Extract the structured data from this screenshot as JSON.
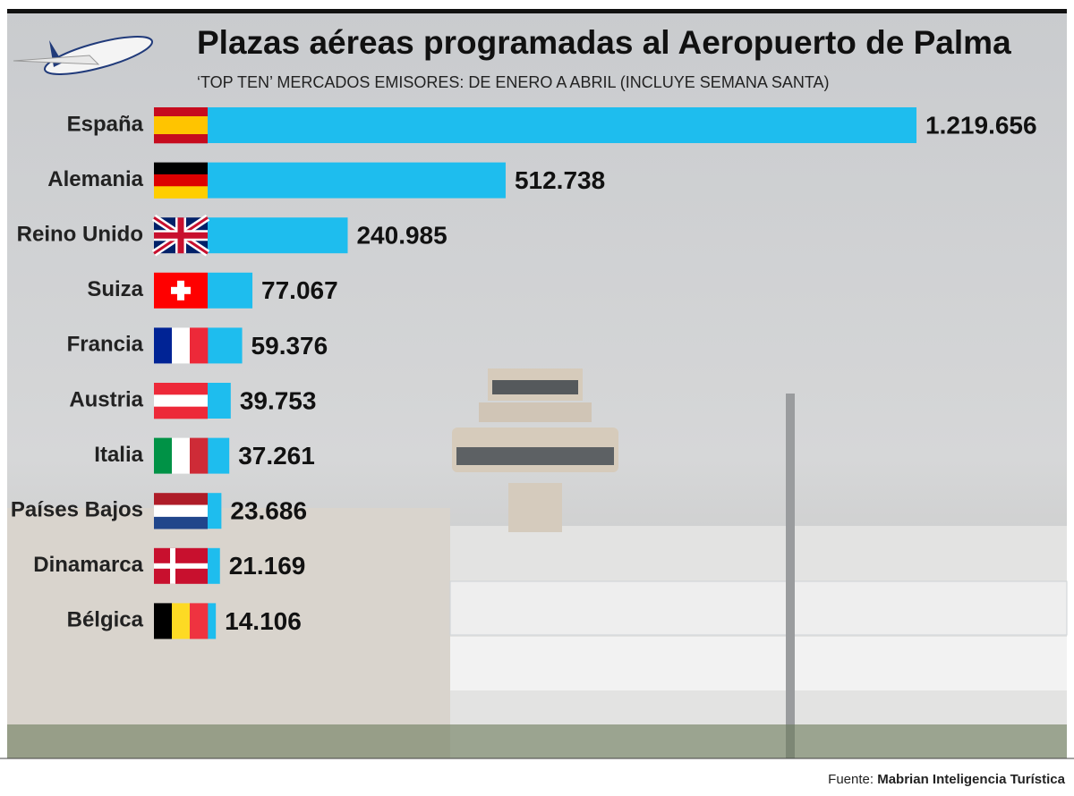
{
  "chart_data": {
    "type": "bar",
    "orientation": "horizontal",
    "title": "Plazas aéreas programadas al Aeropuerto de Palma",
    "subtitle": "‘TOP TEN’ MERCADOS EMISORES: DE ENERO A ABRIL (INCLUYE SEMANA SANTA)",
    "categories": [
      "España",
      "Alemania",
      "Reino Unido",
      "Suiza",
      "Francia",
      "Austria",
      "Italia",
      "Países Bajos",
      "Dinamarca",
      "Bélgica"
    ],
    "values": [
      1219656,
      512738,
      240985,
      77067,
      59376,
      39753,
      37261,
      23686,
      21169,
      14106
    ],
    "value_labels": [
      "1.219.656",
      "512.738",
      "240.985",
      "77.067",
      "59.376",
      "39.753",
      "37.261",
      "23.686",
      "21.169",
      "14.106"
    ],
    "color": "#1ebdee",
    "source_label": "Fuente:",
    "source": "Mabrian Inteligencia Turística"
  }
}
